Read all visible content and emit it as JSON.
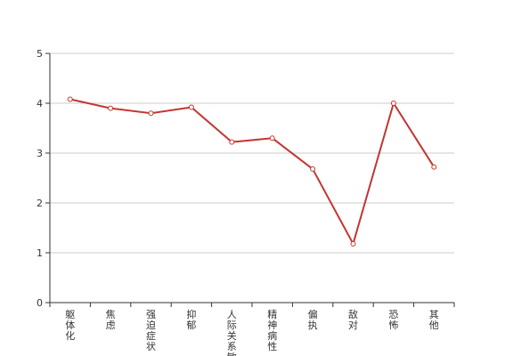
{
  "chart_data": {
    "type": "line",
    "categories": [
      "躯体化",
      "焦虑",
      "强迫症状",
      "抑郁",
      "人际关系敏感",
      "精神病性",
      "偏执",
      "敌对",
      "恐怖",
      "其他"
    ],
    "series": [
      {
        "values": [
          4.08,
          3.9,
          3.8,
          3.92,
          3.22,
          3.3,
          2.68,
          1.18,
          4.0,
          2.72
        ]
      }
    ],
    "ylim": [
      0,
      5
    ],
    "yticks": [
      0,
      1,
      2,
      3,
      4,
      5
    ],
    "grid": true,
    "colors": {
      "line": "#c23531",
      "grid": "#cccccc",
      "axis": "#333333"
    }
  }
}
